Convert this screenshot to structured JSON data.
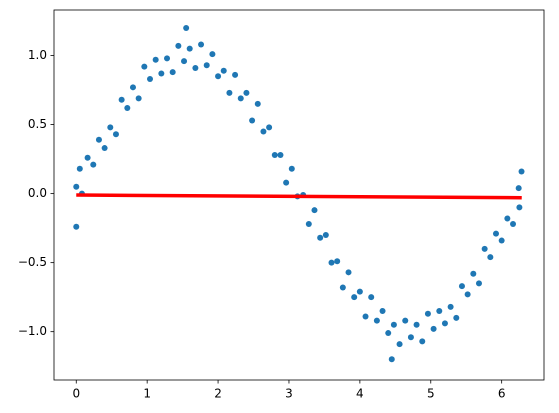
{
  "chart_data": {
    "type": "scatter",
    "xlim": [
      -0.314,
      6.597
    ],
    "ylim": [
      -1.35,
      1.33
    ],
    "xticks": [
      0,
      1,
      2,
      3,
      4,
      5,
      6
    ],
    "yticks": [
      {
        "value": -1,
        "label": "−1.0"
      },
      {
        "value": -0.5,
        "label": "−0.5"
      },
      {
        "value": 0,
        "label": "0.0"
      },
      0.5,
      {
        "value": 1,
        "label": "1.0"
      }
    ],
    "scatter": {
      "color": "#1f77b4",
      "x": [
        0,
        0.08,
        0.16,
        0.24,
        0.32,
        0.4,
        0.48,
        0.56,
        0.64,
        0.72,
        0.8,
        0.88,
        0.96,
        1.04,
        1.12,
        1.2,
        1.28,
        1.36,
        1.44,
        1.52,
        1.6,
        1.68,
        1.76,
        1.84,
        1.92,
        2.0,
        2.08,
        2.16,
        2.24,
        2.32,
        2.4,
        2.48,
        2.56,
        2.64,
        2.72,
        2.8,
        2.88,
        2.96,
        3.04,
        3.12,
        3.2,
        3.28,
        3.36,
        3.44,
        3.52,
        3.6,
        3.68,
        3.76,
        3.84,
        3.92,
        4.0,
        4.08,
        4.16,
        4.24,
        4.32,
        4.4,
        4.48,
        4.56,
        4.64,
        4.72,
        4.8,
        4.88,
        4.96,
        5.04,
        5.12,
        5.2,
        5.28,
        5.36,
        5.44,
        5.52,
        5.6,
        5.68,
        5.76,
        5.84,
        5.92,
        6.0,
        6.08,
        6.16,
        6.24,
        0,
        6.28,
        1.55,
        4.45,
        0.05,
        6.25
      ],
      "values": [
        0.05,
        0,
        0.26,
        0.21,
        0.39,
        0.33,
        0.48,
        0.43,
        0.68,
        0.62,
        0.77,
        0.69,
        0.92,
        0.83,
        0.97,
        0.87,
        0.98,
        0.88,
        1.07,
        0.96,
        1.05,
        0.91,
        1.08,
        0.93,
        1.01,
        0.85,
        0.89,
        0.73,
        0.86,
        0.69,
        0.73,
        0.53,
        0.65,
        0.45,
        0.48,
        0.28,
        0.28,
        0.08,
        0.18,
        -0.02,
        -0.01,
        -0.22,
        -0.12,
        -0.32,
        -0.3,
        -0.5,
        -0.49,
        -0.68,
        -0.57,
        -0.75,
        -0.71,
        -0.89,
        -0.75,
        -0.92,
        -0.85,
        -1.01,
        -0.95,
        -1.09,
        -0.92,
        -1.04,
        -0.95,
        -1.07,
        -0.87,
        -0.98,
        -0.85,
        -0.94,
        -0.82,
        -0.9,
        -0.67,
        -0.73,
        -0.58,
        -0.65,
        -0.4,
        -0.46,
        -0.29,
        -0.34,
        -0.18,
        -0.22,
        0.04,
        -0.24,
        0.16,
        1.2,
        -1.2,
        0.18,
        -0.1
      ]
    },
    "line": {
      "color": "#ff0000",
      "x": [
        0,
        6.283
      ],
      "values": [
        -0.01,
        -0.03
      ]
    }
  }
}
